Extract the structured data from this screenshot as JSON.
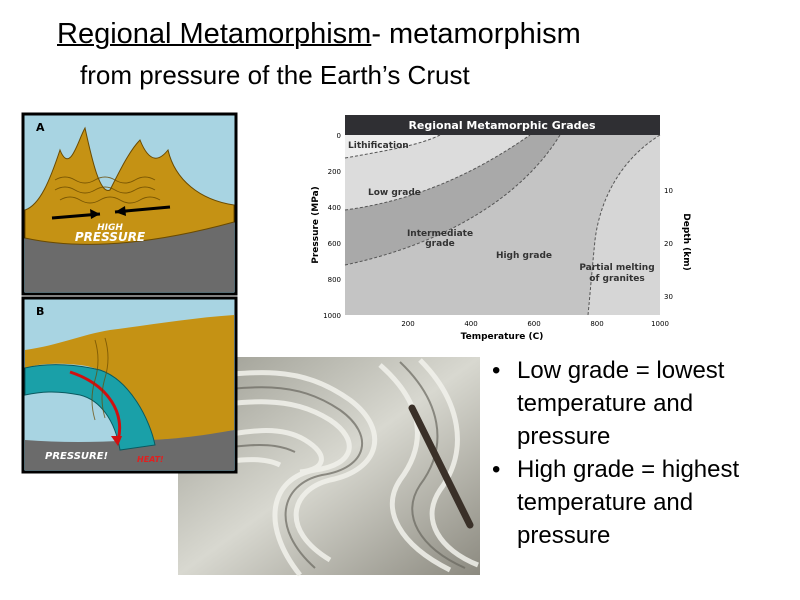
{
  "title": {
    "main": "Regional Metamorphism",
    "rest": "- metamorphism",
    "line2": "from pressure of the Earth’s Crust"
  },
  "figure_a": {
    "label": "A",
    "text_lines": [
      "HIGH",
      "PRESSURE"
    ]
  },
  "figure_b": {
    "label": "B",
    "texts": [
      "PRESSURE!",
      "HEAT!"
    ]
  },
  "grades_chart": {
    "title": "Regional Metamorphic Grades",
    "y_label": "Pressure (MPa)",
    "x_label": "Temperature (C)",
    "y2_label": "Depth (km)",
    "yticks": [
      0,
      200,
      400,
      600,
      800,
      1000
    ],
    "xticks": [
      200,
      400,
      600,
      800,
      1000
    ],
    "y2ticks": [
      10,
      20,
      30
    ],
    "regions": [
      [
        "Lithification"
      ],
      [
        "Low grade"
      ],
      [
        "Intermediate",
        "grade"
      ],
      [
        "High grade"
      ],
      [
        "Partial melting",
        "of granites"
      ]
    ]
  },
  "bullets": [
    "Low grade = lowest temperature and pressure",
    "High grade = highest temperature and pressure"
  ]
}
